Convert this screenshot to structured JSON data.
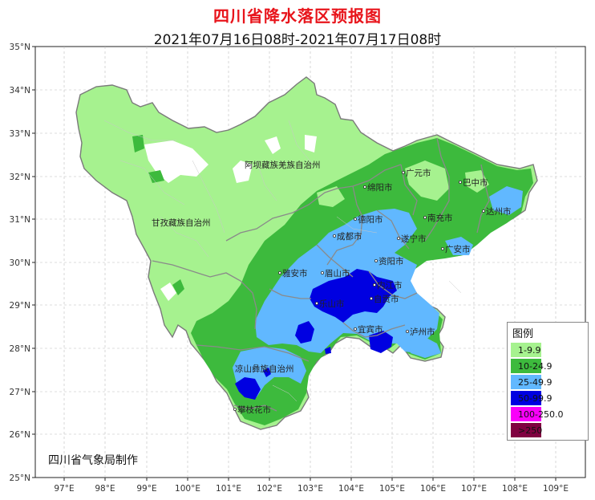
{
  "title": "四川省降水落区预报图",
  "subtitle": "2021年07月16日08时-2021年07月17日08时",
  "credit": "四川省气象局制作",
  "y_ticks": [
    "35°N",
    "34°N",
    "33°N",
    "32°N",
    "31°N",
    "30°N",
    "29°N",
    "28°N",
    "27°N",
    "26°N",
    "25°N"
  ],
  "x_ticks": [
    "97°E",
    "98°E",
    "99°E",
    "100°E",
    "101°E",
    "102°E",
    "103°E",
    "104°E",
    "105°E",
    "106°E",
    "107°E",
    "108°E",
    "109°E"
  ],
  "legend": {
    "title": "图例",
    "items": [
      {
        "label": "1-9.9",
        "color": "#a6f28f"
      },
      {
        "label": "10-24.9",
        "color": "#3dba3d"
      },
      {
        "label": "25-49.9",
        "color": "#61b8ff"
      },
      {
        "label": "50-99.9",
        "color": "#0000e1"
      },
      {
        "label": "100-250.0",
        "color": "#fa00fa"
      },
      {
        "label": ">250",
        "color": "#800040"
      }
    ]
  },
  "cities": [
    {
      "name": "阿坝藏族羌族自治州"
    },
    {
      "name": "甘孜藏族自治州"
    },
    {
      "name": "广元市"
    },
    {
      "name": "巴中市"
    },
    {
      "name": "绵阳市"
    },
    {
      "name": "达州市"
    },
    {
      "name": "南充市"
    },
    {
      "name": "德阳市"
    },
    {
      "name": "成都市"
    },
    {
      "name": "遂宁市"
    },
    {
      "name": "广安市"
    },
    {
      "name": "资阳市"
    },
    {
      "name": "雅安市"
    },
    {
      "name": "眉山市"
    },
    {
      "name": "内江市"
    },
    {
      "name": "乐山市"
    },
    {
      "name": "自贡市"
    },
    {
      "name": "宜宾市"
    },
    {
      "name": "泸州市"
    },
    {
      "name": "凉山彝族自治州"
    },
    {
      "name": "攀枝花市"
    }
  ]
}
